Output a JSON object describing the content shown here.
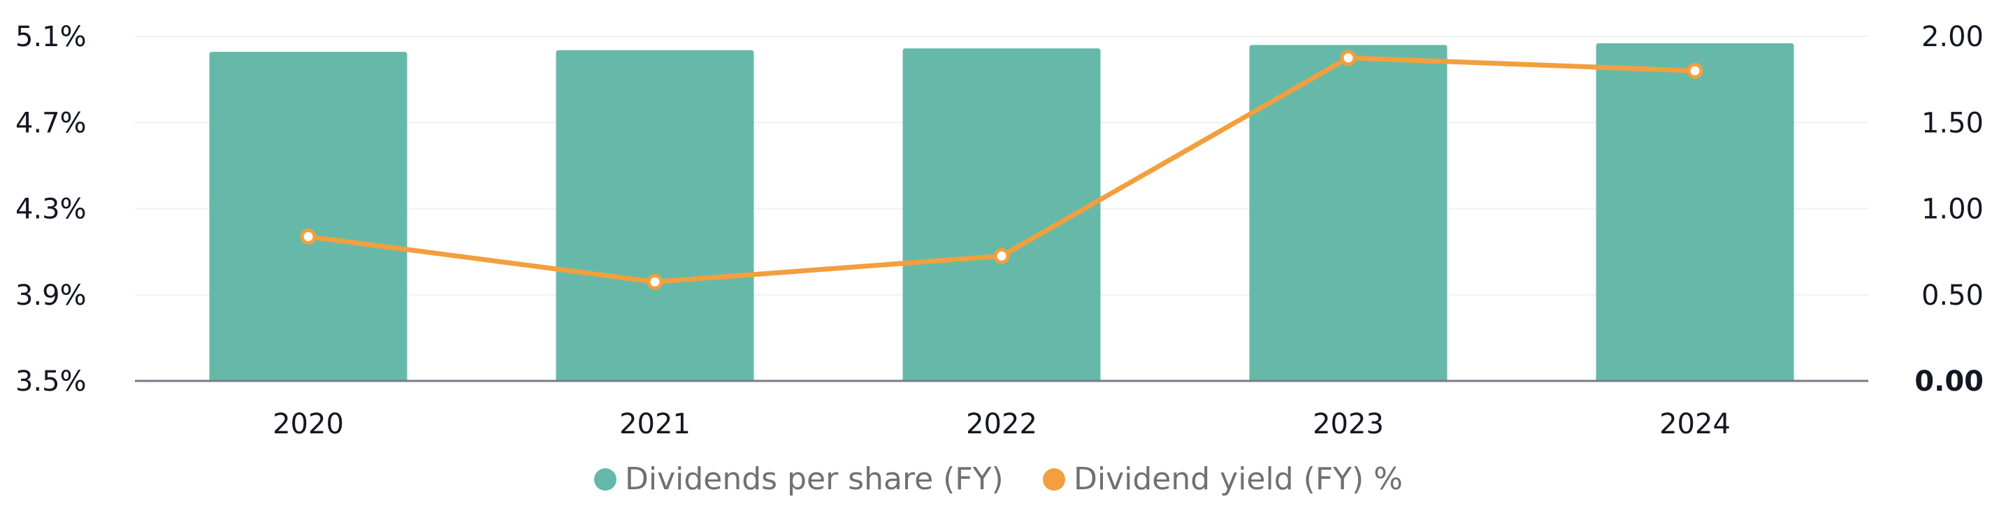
{
  "chart_data": {
    "type": "bar",
    "categories": [
      "2020",
      "2021",
      "2022",
      "2023",
      "2024"
    ],
    "series": [
      {
        "name": "Dividends per share (FY)",
        "type": "bar",
        "axis": "right",
        "color": "#66b9a9",
        "values": [
          1.91,
          1.92,
          1.93,
          1.95,
          1.96
        ]
      },
      {
        "name": "Dividend yield (FY) %",
        "type": "line",
        "axis": "left",
        "color": "#f29f3e",
        "values": [
          4.17,
          3.96,
          4.08,
          5.0,
          4.94
        ]
      }
    ],
    "left_axis": {
      "ticks": [
        "5.1%",
        "4.7%",
        "4.3%",
        "3.9%",
        "3.5%"
      ],
      "tick_values": [
        5.1,
        4.7,
        4.3,
        3.9,
        3.5
      ],
      "range": [
        3.5,
        5.1
      ]
    },
    "right_axis": {
      "ticks": [
        "2.00",
        "1.50",
        "1.00",
        "0.50",
        "0.00"
      ],
      "tick_values": [
        2.0,
        1.5,
        1.0,
        0.5,
        0.0
      ],
      "range": [
        0,
        2.0
      ]
    },
    "grid": true,
    "legend_position": "bottom-center"
  }
}
